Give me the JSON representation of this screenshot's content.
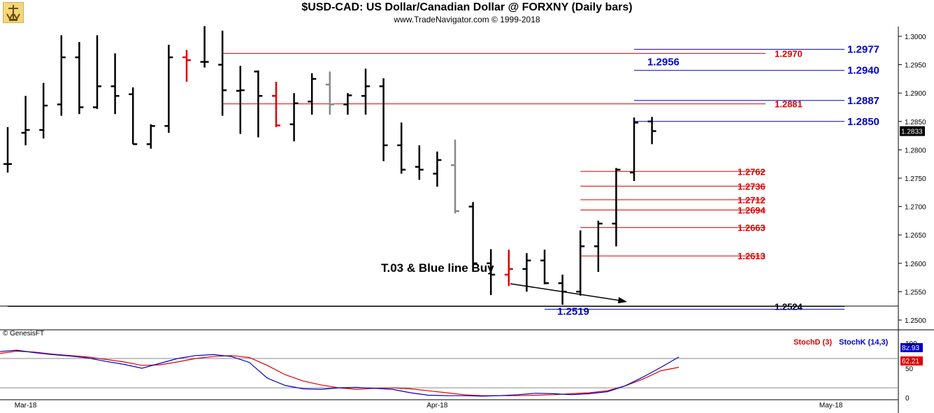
{
  "title": "$USD-CAD:  US Dollar/Canadian Dollar @ FORXNY  (Daily bars)",
  "subtitle": "www.TradeNavigator.com © 1999-2018",
  "brand": "© GenesisFT",
  "annotation": "T.03 & Blue line Buy",
  "colors": {
    "up": "#000000",
    "red": "#e00000",
    "blue": "#0000cc",
    "gray": "#888888",
    "grid": "#cccccc"
  },
  "chart_data": [
    {
      "type": "ohlc",
      "ylim": [
        1.2495,
        1.301
      ],
      "y_ticks": [
        "1.3000",
        "1.2950",
        "1.2900",
        "1.2850",
        "1.2800",
        "1.2750",
        "1.2700",
        "1.2650",
        "1.2600",
        "1.2550",
        "1.2500"
      ],
      "x_ticks": [
        {
          "label": "Mar-18",
          "bar": 1
        },
        {
          "label": "Apr-18",
          "bar": 24
        },
        {
          "label": "May-18",
          "bar": 46
        }
      ],
      "last_price": "1.2833",
      "bars": [
        {
          "o": 1.2775,
          "h": 1.284,
          "l": 1.276,
          "c": 1.2775,
          "color": "black"
        },
        {
          "o": 1.283,
          "h": 1.2895,
          "l": 1.2808,
          "c": 1.2835,
          "color": "black"
        },
        {
          "o": 1.2835,
          "h": 1.2918,
          "l": 1.282,
          "c": 1.2878,
          "color": "black"
        },
        {
          "o": 1.288,
          "h": 1.3002,
          "l": 1.286,
          "c": 1.2963,
          "color": "black"
        },
        {
          "o": 1.2963,
          "h": 1.299,
          "l": 1.2863,
          "c": 1.2875,
          "color": "black"
        },
        {
          "o": 1.2875,
          "h": 1.3002,
          "l": 1.2872,
          "c": 1.2912,
          "color": "black"
        },
        {
          "o": 1.2912,
          "h": 1.297,
          "l": 1.2863,
          "c": 1.2895,
          "color": "black"
        },
        {
          "o": 1.2898,
          "h": 1.291,
          "l": 1.281,
          "c": 1.281,
          "color": "black"
        },
        {
          "o": 1.281,
          "h": 1.2845,
          "l": 1.2802,
          "c": 1.2842,
          "color": "black"
        },
        {
          "o": 1.2842,
          "h": 1.2985,
          "l": 1.283,
          "c": 1.2963,
          "color": "black"
        },
        {
          "o": 1.2963,
          "h": 1.2976,
          "l": 1.292,
          "c": 1.2958,
          "color": "red"
        },
        {
          "o": 1.2955,
          "h": 1.3018,
          "l": 1.2945,
          "c": 1.2955,
          "color": "black"
        },
        {
          "o": 1.295,
          "h": 1.301,
          "l": 1.286,
          "c": 1.2905,
          "color": "black"
        },
        {
          "o": 1.2904,
          "h": 1.2948,
          "l": 1.2828,
          "c": 1.2905,
          "color": "black"
        },
        {
          "o": 1.2938,
          "h": 1.294,
          "l": 1.2822,
          "c": 1.2895,
          "color": "black"
        },
        {
          "o": 1.2895,
          "h": 1.292,
          "l": 1.284,
          "c": 1.2843,
          "color": "red"
        },
        {
          "o": 1.2845,
          "h": 1.29,
          "l": 1.2815,
          "c": 1.2882,
          "color": "black"
        },
        {
          "o": 1.2885,
          "h": 1.2935,
          "l": 1.2862,
          "c": 1.2925,
          "color": "black"
        },
        {
          "o": 1.2915,
          "h": 1.2938,
          "l": 1.2862,
          "c": 1.288,
          "color": "gray"
        },
        {
          "o": 1.288,
          "h": 1.29,
          "l": 1.2862,
          "c": 1.2896,
          "color": "black"
        },
        {
          "o": 1.2895,
          "h": 1.2943,
          "l": 1.2862,
          "c": 1.2912,
          "color": "black"
        },
        {
          "o": 1.2912,
          "h": 1.2926,
          "l": 1.278,
          "c": 1.2808,
          "color": "black"
        },
        {
          "o": 1.2808,
          "h": 1.2848,
          "l": 1.2758,
          "c": 1.2765,
          "color": "black"
        },
        {
          "o": 1.277,
          "h": 1.2808,
          "l": 1.2747,
          "c": 1.2765,
          "color": "black"
        },
        {
          "o": 1.2758,
          "h": 1.2797,
          "l": 1.2735,
          "c": 1.2782,
          "color": "black"
        },
        {
          "o": 1.2773,
          "h": 1.2818,
          "l": 1.2688,
          "c": 1.2692,
          "color": "gray"
        },
        {
          "o": 1.27,
          "h": 1.2708,
          "l": 1.2585,
          "c": 1.26,
          "color": "black"
        },
        {
          "o": 1.26,
          "h": 1.2625,
          "l": 1.2544,
          "c": 1.258,
          "color": "black"
        },
        {
          "o": 1.258,
          "h": 1.2624,
          "l": 1.256,
          "c": 1.259,
          "color": "red"
        },
        {
          "o": 1.259,
          "h": 1.2618,
          "l": 1.255,
          "c": 1.2605,
          "color": "black"
        },
        {
          "o": 1.2605,
          "h": 1.2624,
          "l": 1.2563,
          "c": 1.2565,
          "color": "black"
        },
        {
          "o": 1.2565,
          "h": 1.258,
          "l": 1.2527,
          "c": 1.255,
          "color": "black"
        },
        {
          "o": 1.255,
          "h": 1.2658,
          "l": 1.2543,
          "c": 1.263,
          "color": "black"
        },
        {
          "o": 1.263,
          "h": 1.2675,
          "l": 1.2585,
          "c": 1.267,
          "color": "black"
        },
        {
          "o": 1.267,
          "h": 1.2768,
          "l": 1.263,
          "c": 1.2765,
          "color": "black"
        },
        {
          "o": 1.276,
          "h": 1.2857,
          "l": 1.2745,
          "c": 1.2848,
          "color": "black"
        },
        {
          "o": 1.285,
          "h": 1.2858,
          "l": 1.281,
          "c": 1.2833,
          "color": "black"
        }
      ],
      "levels": [
        {
          "value": "1.2977",
          "price": 1.2977,
          "color": "blue",
          "bar_from": 35,
          "bar_to": 48
        },
        {
          "value": "1.2970",
          "price": 1.297,
          "color": "red",
          "bar_from": 12,
          "bar_to": 48
        },
        {
          "value": "1.2940",
          "price": 1.294,
          "color": "blue",
          "bar_from": 35,
          "bar_to": 48
        },
        {
          "value": "1.2887",
          "price": 1.2887,
          "color": "blue",
          "bar_from": 35,
          "bar_to": 48
        },
        {
          "value": "1.2881",
          "price": 1.2881,
          "color": "red",
          "bar_from": 12,
          "bar_to": 48
        },
        {
          "value": "1.2850",
          "price": 1.285,
          "color": "blue",
          "bar_from": 35,
          "bar_to": 48
        },
        {
          "value": "1.2762",
          "price": 1.2762,
          "color": "red",
          "bar_from": 32,
          "bar_to": 42
        },
        {
          "value": "1.2736",
          "price": 1.2736,
          "color": "red",
          "bar_from": 32,
          "bar_to": 42
        },
        {
          "value": "1.2712",
          "price": 1.2712,
          "color": "red",
          "bar_from": 32,
          "bar_to": 42
        },
        {
          "value": "1.2694",
          "price": 1.2694,
          "color": "red",
          "bar_from": 32,
          "bar_to": 42
        },
        {
          "value": "1.2663",
          "price": 1.2663,
          "color": "red",
          "bar_from": 32,
          "bar_to": 42
        },
        {
          "value": "1.2613",
          "price": 1.2613,
          "color": "red",
          "bar_from": 32,
          "bar_to": 42
        },
        {
          "value": "1.2524",
          "price": 1.2524,
          "color": "black",
          "bar_from": 0,
          "bar_to": 48
        },
        {
          "value": "1.2519",
          "price": 1.2519,
          "color": "blue",
          "bar_from": 30,
          "bar_to": 48
        }
      ],
      "extra_labels": [
        {
          "value": "1.2956",
          "price": 1.2956,
          "color": "blue",
          "bar": 34
        }
      ]
    },
    {
      "type": "line",
      "indicator": "Stochastic",
      "ylim": [
        0,
        100
      ],
      "y_ticks": [
        "100",
        "50",
        "0"
      ],
      "series": [
        {
          "name": "StochD (3)",
          "color": "red",
          "last": "62.21",
          "values": [
            90,
            95,
            93,
            89,
            86,
            83,
            78,
            73,
            66,
            67,
            73,
            80,
            84,
            86,
            82,
            66,
            47,
            34,
            26,
            20,
            17,
            19,
            20,
            18,
            14,
            10,
            6,
            4,
            4,
            4,
            5,
            6,
            8,
            10,
            14,
            24,
            38,
            55,
            62
          ]
        },
        {
          "name": "StochK (14,3)",
          "color": "blue",
          "last": "82.93",
          "values": [
            94,
            97,
            92,
            88,
            85,
            81,
            74,
            68,
            60,
            70,
            80,
            86,
            88,
            84,
            72,
            40,
            25,
            18,
            17,
            20,
            21,
            19,
            17,
            10,
            5,
            4,
            4,
            3,
            4,
            6,
            9,
            8,
            6,
            8,
            12,
            24,
            42,
            62,
            83
          ]
        }
      ]
    }
  ]
}
